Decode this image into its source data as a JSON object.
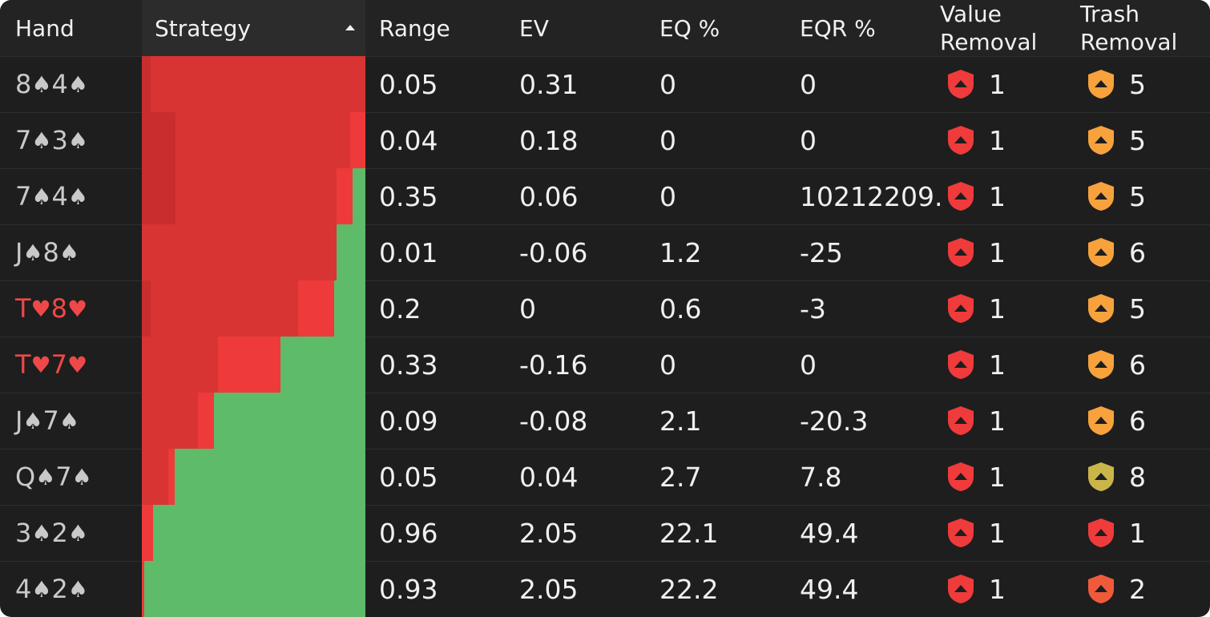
{
  "header": {
    "hand": "Hand",
    "strategy": "Strategy",
    "range": "Range",
    "ev": "EV",
    "eq": "EQ %",
    "eqr": "EQR %",
    "value_removal_line1": "Value",
    "value_removal_line2": "Removal",
    "trash_removal_line1": "Trash",
    "trash_removal_line2": "Removal",
    "sort_icon": "sort-ascending-caret"
  },
  "colors": {
    "bet_large": "#d83434",
    "bet_dark": "#c92d2d",
    "bet_mid": "#ee3a3a",
    "check": "#5dbb6a",
    "spade_text": "#c9c9c9",
    "heart_text": "#ef4848",
    "shield_red": "#ef3b3b",
    "shield_orange": "#f7a23c",
    "shield_yellow": "#c9b54a",
    "shield_redorange": "#ef5a3a"
  },
  "rows": [
    {
      "rank1": "8",
      "suit1": "♠",
      "rank2": "4",
      "suit2": "♠",
      "suit_color": "spade",
      "strategy": [
        {
          "share": 0.04,
          "color": "bet_dark"
        },
        {
          "share": 0.96,
          "color": "bet_large"
        }
      ],
      "range": "0.05",
      "ev": "0.31",
      "eq": "0",
      "eqr": "0",
      "value_removal": "1",
      "value_icon": "shield-red",
      "trash_removal": "5",
      "trash_icon": "shield-orange"
    },
    {
      "rank1": "7",
      "suit1": "♠",
      "rank2": "3",
      "suit2": "♠",
      "suit_color": "spade",
      "strategy": [
        {
          "share": 0.15,
          "color": "bet_dark"
        },
        {
          "share": 0.78,
          "color": "bet_large"
        },
        {
          "share": 0.07,
          "color": "bet_mid"
        }
      ],
      "range": "0.04",
      "ev": "0.18",
      "eq": "0",
      "eqr": "0",
      "value_removal": "1",
      "value_icon": "shield-red",
      "trash_removal": "5",
      "trash_icon": "shield-orange"
    },
    {
      "rank1": "7",
      "suit1": "♠",
      "rank2": "4",
      "suit2": "♠",
      "suit_color": "spade",
      "strategy": [
        {
          "share": 0.15,
          "color": "bet_dark"
        },
        {
          "share": 0.72,
          "color": "bet_large"
        },
        {
          "share": 0.07,
          "color": "bet_mid"
        },
        {
          "share": 0.06,
          "color": "check"
        }
      ],
      "range": "0.35",
      "ev": "0.06",
      "eq": "0",
      "eqr": "10212209.",
      "value_removal": "1",
      "value_icon": "shield-red",
      "trash_removal": "5",
      "trash_icon": "shield-orange"
    },
    {
      "rank1": "J",
      "suit1": "♠",
      "rank2": "8",
      "suit2": "♠",
      "suit_color": "spade",
      "strategy": [
        {
          "share": 0.87,
          "color": "bet_large"
        },
        {
          "share": 0.13,
          "color": "check"
        }
      ],
      "range": "0.01",
      "ev": "-0.06",
      "eq": "1.2",
      "eqr": "-25",
      "value_removal": "1",
      "value_icon": "shield-red",
      "trash_removal": "6",
      "trash_icon": "shield-orange"
    },
    {
      "rank1": "T",
      "suit1": "♥",
      "rank2": "8",
      "suit2": "♥",
      "suit_color": "heart",
      "strategy": [
        {
          "share": 0.04,
          "color": "bet_dark"
        },
        {
          "share": 0.66,
          "color": "bet_large"
        },
        {
          "share": 0.16,
          "color": "bet_mid"
        },
        {
          "share": 0.14,
          "color": "check"
        }
      ],
      "range": "0.2",
      "ev": "0",
      "eq": "0.6",
      "eqr": "-3",
      "value_removal": "1",
      "value_icon": "shield-red",
      "trash_removal": "5",
      "trash_icon": "shield-orange"
    },
    {
      "rank1": "T",
      "suit1": "♥",
      "rank2": "7",
      "suit2": "♥",
      "suit_color": "heart",
      "strategy": [
        {
          "share": 0.34,
          "color": "bet_large"
        },
        {
          "share": 0.28,
          "color": "bet_mid"
        },
        {
          "share": 0.38,
          "color": "check"
        }
      ],
      "range": "0.33",
      "ev": "-0.16",
      "eq": "0",
      "eqr": "0",
      "value_removal": "1",
      "value_icon": "shield-red",
      "trash_removal": "6",
      "trash_icon": "shield-orange"
    },
    {
      "rank1": "J",
      "suit1": "♠",
      "rank2": "7",
      "suit2": "♠",
      "suit_color": "spade",
      "strategy": [
        {
          "share": 0.25,
          "color": "bet_large"
        },
        {
          "share": 0.07,
          "color": "bet_mid"
        },
        {
          "share": 0.68,
          "color": "check"
        }
      ],
      "range": "0.09",
      "ev": "-0.08",
      "eq": "2.1",
      "eqr": "-20.3",
      "value_removal": "1",
      "value_icon": "shield-red",
      "trash_removal": "6",
      "trash_icon": "shield-orange"
    },
    {
      "rank1": "Q",
      "suit1": "♠",
      "rank2": "7",
      "suit2": "♠",
      "suit_color": "spade",
      "strategy": [
        {
          "share": 0.12,
          "color": "bet_large"
        },
        {
          "share": 0.03,
          "color": "bet_mid"
        },
        {
          "share": 0.85,
          "color": "check"
        }
      ],
      "range": "0.05",
      "ev": "0.04",
      "eq": "2.7",
      "eqr": "7.8",
      "value_removal": "1",
      "value_icon": "shield-red",
      "trash_removal": "8",
      "trash_icon": "shield-yellow"
    },
    {
      "rank1": "3",
      "suit1": "♠",
      "rank2": "2",
      "suit2": "♠",
      "suit_color": "spade",
      "strategy": [
        {
          "share": 0.05,
          "color": "bet_mid"
        },
        {
          "share": 0.95,
          "color": "check"
        }
      ],
      "range": "0.96",
      "ev": "2.05",
      "eq": "22.1",
      "eqr": "49.4",
      "value_removal": "1",
      "value_icon": "shield-red",
      "trash_removal": "1",
      "trash_icon": "shield-red"
    },
    {
      "rank1": "4",
      "suit1": "♠",
      "rank2": "2",
      "suit2": "♠",
      "suit_color": "spade",
      "strategy": [
        {
          "share": 0.01,
          "color": "bet_mid"
        },
        {
          "share": 0.99,
          "color": "check"
        }
      ],
      "range": "0.93",
      "ev": "2.05",
      "eq": "22.2",
      "eqr": "49.4",
      "value_removal": "1",
      "value_icon": "shield-red",
      "trash_removal": "2",
      "trash_icon": "shield-redorange"
    }
  ]
}
